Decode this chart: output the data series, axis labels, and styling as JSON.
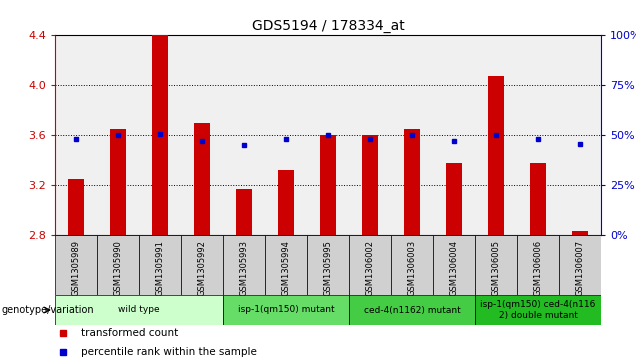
{
  "title": "GDS5194 / 178334_at",
  "samples": [
    "GSM1305989",
    "GSM1305990",
    "GSM1305991",
    "GSM1305992",
    "GSM1305993",
    "GSM1305994",
    "GSM1305995",
    "GSM1306002",
    "GSM1306003",
    "GSM1306004",
    "GSM1306005",
    "GSM1306006",
    "GSM1306007"
  ],
  "bar_values": [
    3.25,
    3.65,
    4.4,
    3.7,
    3.17,
    3.32,
    3.6,
    3.6,
    3.65,
    3.38,
    4.07,
    3.38,
    2.83
  ],
  "scatter_values": [
    3.57,
    3.6,
    3.61,
    3.55,
    3.52,
    3.57,
    3.6,
    3.57,
    3.6,
    3.55,
    3.6,
    3.57,
    3.53
  ],
  "ylim": [
    2.8,
    4.4
  ],
  "yticks": [
    2.8,
    3.2,
    3.6,
    4.0,
    4.4
  ],
  "right_yticks": [
    0,
    25,
    50,
    75,
    100
  ],
  "bar_color": "#cc0000",
  "scatter_color": "#0000cc",
  "bar_bottom": 2.8,
  "groups": [
    {
      "label": "wild type",
      "start": 0,
      "end": 3,
      "color": "#ccffcc"
    },
    {
      "label": "isp-1(qm150) mutant",
      "start": 4,
      "end": 6,
      "color": "#66dd66"
    },
    {
      "label": "ced-4(n1162) mutant",
      "start": 7,
      "end": 9,
      "color": "#44cc44"
    },
    {
      "label": "isp-1(qm150) ced-4(n116\n2) double mutant",
      "start": 10,
      "end": 12,
      "color": "#22bb22"
    }
  ],
  "genotype_label": "genotype/variation",
  "legend_items": [
    {
      "label": "transformed count",
      "color": "#cc0000"
    },
    {
      "label": "percentile rank within the sample",
      "color": "#0000cc"
    }
  ],
  "plot_bg": "#f0f0f0",
  "sample_box_color": "#d0d0d0",
  "right_axis_color": "#0000cc",
  "left_axis_color": "#cc0000",
  "n_samples": 13
}
